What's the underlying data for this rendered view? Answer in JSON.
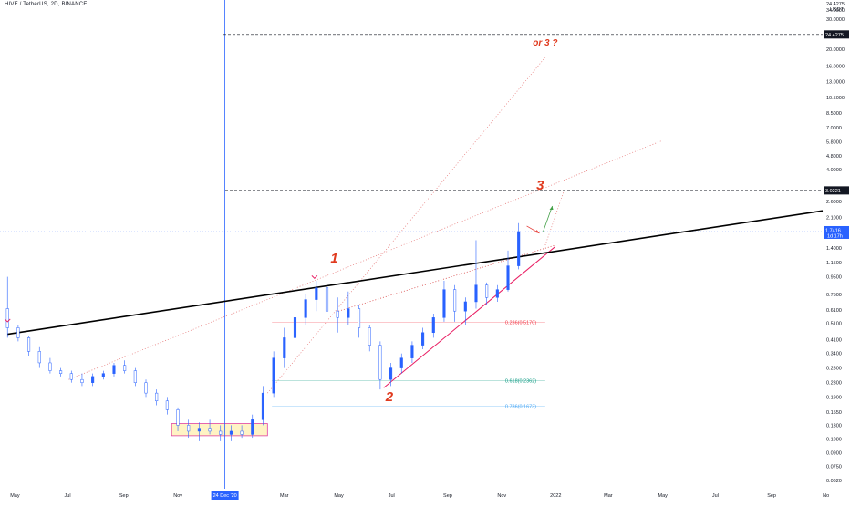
{
  "symbol_title": "HIVE / TetherUS, 2D, BINANCE",
  "currency": {
    "line1": "24.4275",
    "line2": "USDT"
  },
  "colors": {
    "candle": "#2962ff",
    "trendline": "#000000",
    "wedge": "#e91e63",
    "crosshair": "#2962ff",
    "fib_0236": "#f23645",
    "fib_0618": "#089981",
    "fib_0786": "#42a5f5",
    "current_price_tag": "#2962ff",
    "level_tag": "#131722",
    "wave_text": "#e03a1e"
  },
  "chart_data": {
    "type": "candlestick",
    "title": "HIVE / TetherUS, 2D, BINANCE",
    "scale": "log",
    "xlabel": "",
    "ylabel": "",
    "x_range": [
      "2020-04-20",
      "2022-11-10"
    ],
    "y_range": [
      0.056,
      42
    ],
    "y_ticks": [
      "0.0620",
      "0.0750",
      "0.0900",
      "0.1080",
      "0.1300",
      "0.1550",
      "0.1900",
      "0.2300",
      "0.2800",
      "0.3400",
      "0.4100",
      "0.5100",
      "0.6100",
      "0.7500",
      "0.9500",
      "1.1500",
      "1.4000",
      "1.7416",
      "2.1000",
      "2.6000",
      "3.0221",
      "4.0000",
      "4.8000",
      "5.8000",
      "7.0000",
      "8.5000",
      "10.5000",
      "13.0000",
      "16.0000",
      "20.0000",
      "24.4275",
      "30.0000",
      "34.0000"
    ],
    "x_ticks": [
      {
        "label": "May",
        "date": "2020-05-01"
      },
      {
        "label": "Jul",
        "date": "2020-07-01"
      },
      {
        "label": "Sep",
        "date": "2020-09-01"
      },
      {
        "label": "Nov",
        "date": "2020-11-01"
      },
      {
        "label": "Mar",
        "date": "2021-03-01"
      },
      {
        "label": "May",
        "date": "2021-05-01"
      },
      {
        "label": "Jul",
        "date": "2021-07-01"
      },
      {
        "label": "Sep",
        "date": "2021-09-01"
      },
      {
        "label": "Nov",
        "date": "2021-11-01"
      },
      {
        "label": "2022",
        "date": "2022-01-01"
      },
      {
        "label": "Mar",
        "date": "2022-03-01"
      },
      {
        "label": "May",
        "date": "2022-05-01"
      },
      {
        "label": "Jul",
        "date": "2022-07-01"
      },
      {
        "label": "Sep",
        "date": "2022-09-01"
      },
      {
        "label": "No",
        "date": "2022-11-01"
      }
    ],
    "crosshair": {
      "date": "2020-12-24",
      "label": "24 Dec '20",
      "price": 1.7416
    },
    "current_price": {
      "value": "1.7416",
      "countdown": "1d 17h"
    },
    "candles": [
      {
        "date": "2020-04-23",
        "o": 0.62,
        "h": 0.95,
        "l": 0.42,
        "c": 0.48
      },
      {
        "date": "2020-05-05",
        "o": 0.48,
        "h": 0.5,
        "l": 0.4,
        "c": 0.42
      },
      {
        "date": "2020-05-17",
        "o": 0.42,
        "h": 0.43,
        "l": 0.33,
        "c": 0.35
      },
      {
        "date": "2020-05-29",
        "o": 0.35,
        "h": 0.37,
        "l": 0.28,
        "c": 0.3
      },
      {
        "date": "2020-06-10",
        "o": 0.3,
        "h": 0.32,
        "l": 0.26,
        "c": 0.27
      },
      {
        "date": "2020-06-22",
        "o": 0.27,
        "h": 0.28,
        "l": 0.25,
        "c": 0.26
      },
      {
        "date": "2020-07-04",
        "o": 0.26,
        "h": 0.27,
        "l": 0.23,
        "c": 0.24
      },
      {
        "date": "2020-07-16",
        "o": 0.24,
        "h": 0.26,
        "l": 0.22,
        "c": 0.23
      },
      {
        "date": "2020-07-28",
        "o": 0.23,
        "h": 0.26,
        "l": 0.22,
        "c": 0.25
      },
      {
        "date": "2020-08-09",
        "o": 0.25,
        "h": 0.27,
        "l": 0.24,
        "c": 0.26
      },
      {
        "date": "2020-08-21",
        "o": 0.26,
        "h": 0.3,
        "l": 0.25,
        "c": 0.29
      },
      {
        "date": "2020-09-02",
        "o": 0.29,
        "h": 0.31,
        "l": 0.26,
        "c": 0.27
      },
      {
        "date": "2020-09-14",
        "o": 0.27,
        "h": 0.28,
        "l": 0.22,
        "c": 0.23
      },
      {
        "date": "2020-09-26",
        "o": 0.23,
        "h": 0.24,
        "l": 0.19,
        "c": 0.2
      },
      {
        "date": "2020-10-08",
        "o": 0.2,
        "h": 0.21,
        "l": 0.17,
        "c": 0.18
      },
      {
        "date": "2020-10-20",
        "o": 0.18,
        "h": 0.19,
        "l": 0.15,
        "c": 0.16
      },
      {
        "date": "2020-11-01",
        "o": 0.16,
        "h": 0.165,
        "l": 0.12,
        "c": 0.13
      },
      {
        "date": "2020-11-13",
        "o": 0.13,
        "h": 0.14,
        "l": 0.11,
        "c": 0.12
      },
      {
        "date": "2020-11-25",
        "o": 0.12,
        "h": 0.135,
        "l": 0.105,
        "c": 0.125
      },
      {
        "date": "2020-12-07",
        "o": 0.125,
        "h": 0.14,
        "l": 0.115,
        "c": 0.12
      },
      {
        "date": "2020-12-19",
        "o": 0.12,
        "h": 0.13,
        "l": 0.105,
        "c": 0.115
      },
      {
        "date": "2020-12-31",
        "o": 0.115,
        "h": 0.13,
        "l": 0.105,
        "c": 0.12
      },
      {
        "date": "2021-01-12",
        "o": 0.12,
        "h": 0.13,
        "l": 0.11,
        "c": 0.115
      },
      {
        "date": "2021-01-24",
        "o": 0.115,
        "h": 0.15,
        "l": 0.11,
        "c": 0.14
      },
      {
        "date": "2021-02-05",
        "o": 0.14,
        "h": 0.22,
        "l": 0.13,
        "c": 0.2
      },
      {
        "date": "2021-02-17",
        "o": 0.2,
        "h": 0.35,
        "l": 0.19,
        "c": 0.32
      },
      {
        "date": "2021-03-01",
        "o": 0.32,
        "h": 0.48,
        "l": 0.28,
        "c": 0.42
      },
      {
        "date": "2021-03-13",
        "o": 0.42,
        "h": 0.6,
        "l": 0.38,
        "c": 0.55
      },
      {
        "date": "2021-03-25",
        "o": 0.55,
        "h": 0.75,
        "l": 0.5,
        "c": 0.7
      },
      {
        "date": "2021-04-06",
        "o": 0.7,
        "h": 0.9,
        "l": 0.6,
        "c": 0.82
      },
      {
        "date": "2021-04-18",
        "o": 0.82,
        "h": 0.88,
        "l": 0.52,
        "c": 0.6
      },
      {
        "date": "2021-04-30",
        "o": 0.6,
        "h": 0.72,
        "l": 0.45,
        "c": 0.55
      },
      {
        "date": "2021-05-12",
        "o": 0.55,
        "h": 0.78,
        "l": 0.5,
        "c": 0.62
      },
      {
        "date": "2021-05-24",
        "o": 0.62,
        "h": 0.65,
        "l": 0.42,
        "c": 0.48
      },
      {
        "date": "2021-06-05",
        "o": 0.48,
        "h": 0.5,
        "l": 0.35,
        "c": 0.38
      },
      {
        "date": "2021-06-17",
        "o": 0.38,
        "h": 0.4,
        "l": 0.21,
        "c": 0.24
      },
      {
        "date": "2021-06-29",
        "o": 0.24,
        "h": 0.3,
        "l": 0.22,
        "c": 0.28
      },
      {
        "date": "2021-07-11",
        "o": 0.28,
        "h": 0.34,
        "l": 0.26,
        "c": 0.32
      },
      {
        "date": "2021-07-23",
        "o": 0.32,
        "h": 0.4,
        "l": 0.3,
        "c": 0.38
      },
      {
        "date": "2021-08-04",
        "o": 0.38,
        "h": 0.48,
        "l": 0.36,
        "c": 0.45
      },
      {
        "date": "2021-08-16",
        "o": 0.45,
        "h": 0.58,
        "l": 0.42,
        "c": 0.55
      },
      {
        "date": "2021-08-28",
        "o": 0.55,
        "h": 0.9,
        "l": 0.52,
        "c": 0.8
      },
      {
        "date": "2021-09-09",
        "o": 0.8,
        "h": 0.85,
        "l": 0.52,
        "c": 0.6
      },
      {
        "date": "2021-09-21",
        "o": 0.6,
        "h": 0.72,
        "l": 0.5,
        "c": 0.68
      },
      {
        "date": "2021-10-03",
        "o": 0.68,
        "h": 1.55,
        "l": 0.62,
        "c": 0.85
      },
      {
        "date": "2021-10-15",
        "o": 0.85,
        "h": 0.88,
        "l": 0.65,
        "c": 0.72
      },
      {
        "date": "2021-10-27",
        "o": 0.72,
        "h": 0.85,
        "l": 0.68,
        "c": 0.8
      },
      {
        "date": "2021-11-08",
        "o": 0.8,
        "h": 1.35,
        "l": 0.78,
        "c": 1.1
      },
      {
        "date": "2021-11-20",
        "o": 1.1,
        "h": 1.95,
        "l": 1.05,
        "c": 1.7416
      }
    ]
  },
  "price_tags": [
    {
      "id": "target-high",
      "text": "24.4275",
      "value": 24.4275
    },
    {
      "id": "target-3",
      "text": "3.0221",
      "value": 3.0221
    }
  ],
  "fib_levels": [
    {
      "text": "0.236(0.5170)",
      "value": 0.517,
      "color_key": "fib_0236"
    },
    {
      "text": "0.618(0.2362)",
      "value": 0.2362,
      "color_key": "fib_0618"
    },
    {
      "text": "0.786(0.1673)",
      "value": 0.1673,
      "color_key": "fib_0786"
    }
  ],
  "waves": {
    "w1": "1",
    "w2": "2",
    "w3": "3",
    "alt": "or 3 ?"
  },
  "accumulation_box": {
    "start": "2020-10-25",
    "end": "2021-02-10",
    "low": 0.113,
    "high": 0.133
  }
}
